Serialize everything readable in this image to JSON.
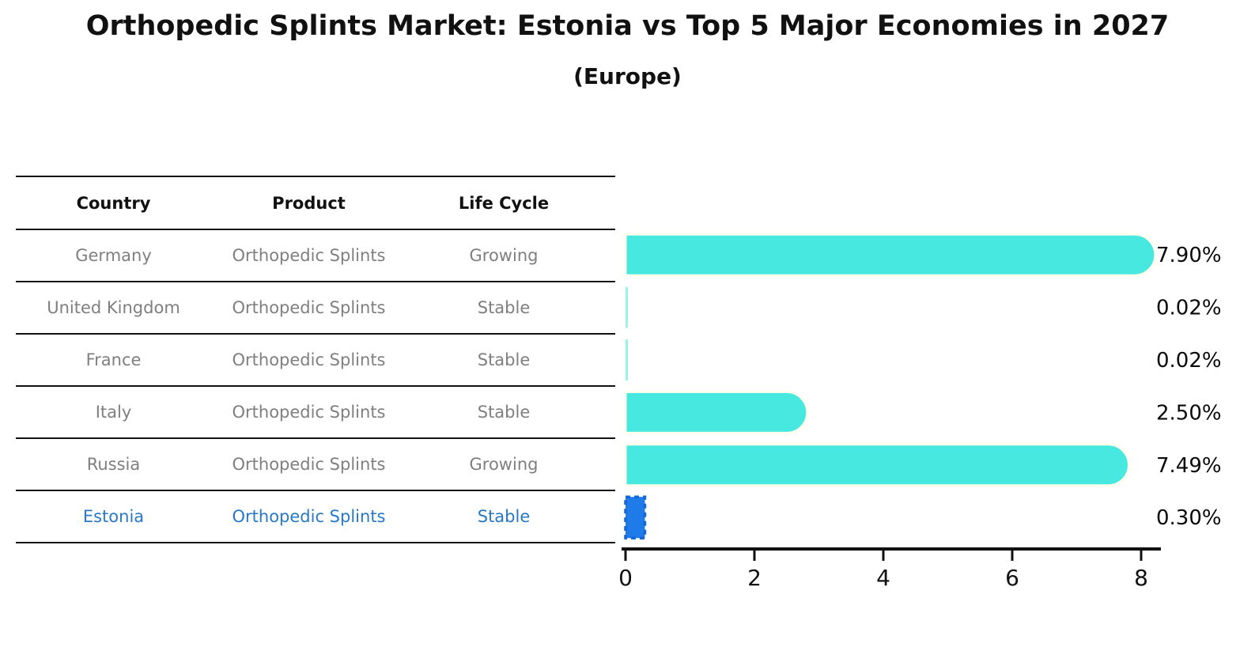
{
  "header": {
    "title": "Orthopedic Splints Market: Estonia vs Top 5 Major Economies in 2027",
    "subtitle": "(Europe)"
  },
  "table": {
    "headers": [
      "Country",
      "Product",
      "Life Cycle"
    ],
    "rows": [
      {
        "country": "Germany",
        "product": "Orthopedic Splints",
        "life_cycle": "Growing",
        "highlighted": false
      },
      {
        "country": "United Kingdom",
        "product": "Orthopedic Splints",
        "life_cycle": "Stable",
        "highlighted": false
      },
      {
        "country": "France",
        "product": "Orthopedic Splints",
        "life_cycle": "Stable",
        "highlighted": false
      },
      {
        "country": "Italy",
        "product": "Orthopedic Splints",
        "life_cycle": "Stable",
        "highlighted": false
      },
      {
        "country": "Russia",
        "product": "Orthopedic Splints",
        "life_cycle": "Growing",
        "highlighted": false
      },
      {
        "country": "Estonia",
        "product": "Orthopedic Splints",
        "life_cycle": "Stable",
        "highlighted": true
      }
    ]
  },
  "chart_data": {
    "type": "bar",
    "orientation": "horizontal",
    "title": "Orthopedic Splints Market: Estonia vs Top 5 Major Economies in 2027 (Europe)",
    "categories": [
      "Germany",
      "United Kingdom",
      "France",
      "Italy",
      "Russia",
      "Estonia"
    ],
    "values": [
      7.9,
      0.02,
      0.02,
      2.5,
      7.49,
      0.3
    ],
    "value_labels": [
      "7.90%",
      "0.02%",
      "0.02%",
      "2.50%",
      "7.49%",
      "0.30%"
    ],
    "xlabel": "",
    "ylabel": "",
    "xlim": [
      0,
      8.3
    ],
    "xticks": [
      0,
      2,
      4,
      6,
      8
    ],
    "grid": false,
    "legend": "none",
    "bar_color": "#46E8E0",
    "bar_edge_color": "#FFFDEB",
    "tiny_bar_color": "#9FF0EA",
    "highlight_index": 5,
    "highlight_bar_color": "#1E7BE8",
    "highlight_bar_edge_color": "#1565DB",
    "highlight_text_color": "#2878C8",
    "axis_color": "#111111"
  }
}
